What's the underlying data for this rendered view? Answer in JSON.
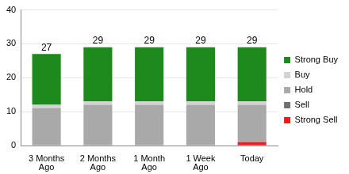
{
  "chart_data": {
    "type": "bar",
    "stacked": true,
    "categories": [
      "3 Months\nAgo",
      "2 Months\nAgo",
      "1 Month\nAgo",
      "1 Week\nAgo",
      "Today"
    ],
    "series": [
      {
        "name": "Strong Sell",
        "color": "#e3201b",
        "values": [
          0,
          0,
          0,
          0,
          1
        ]
      },
      {
        "name": "Sell",
        "color": "#707070",
        "values": [
          0,
          0,
          0,
          0,
          0
        ]
      },
      {
        "name": "Hold",
        "color": "#a9a9a9",
        "values": [
          11,
          12,
          12,
          12,
          11
        ]
      },
      {
        "name": "Buy",
        "color": "#d3d3d3",
        "values": [
          1,
          1,
          1,
          1,
          1
        ]
      },
      {
        "name": "Strong Buy",
        "color": "#1e8a1e",
        "values": [
          15,
          16,
          16,
          16,
          16
        ]
      }
    ],
    "totals": [
      27,
      29,
      29,
      29,
      29
    ],
    "ylim": [
      0,
      40
    ],
    "yticks": [
      0,
      10,
      20,
      30,
      40
    ],
    "grid": true,
    "legend": "right"
  }
}
